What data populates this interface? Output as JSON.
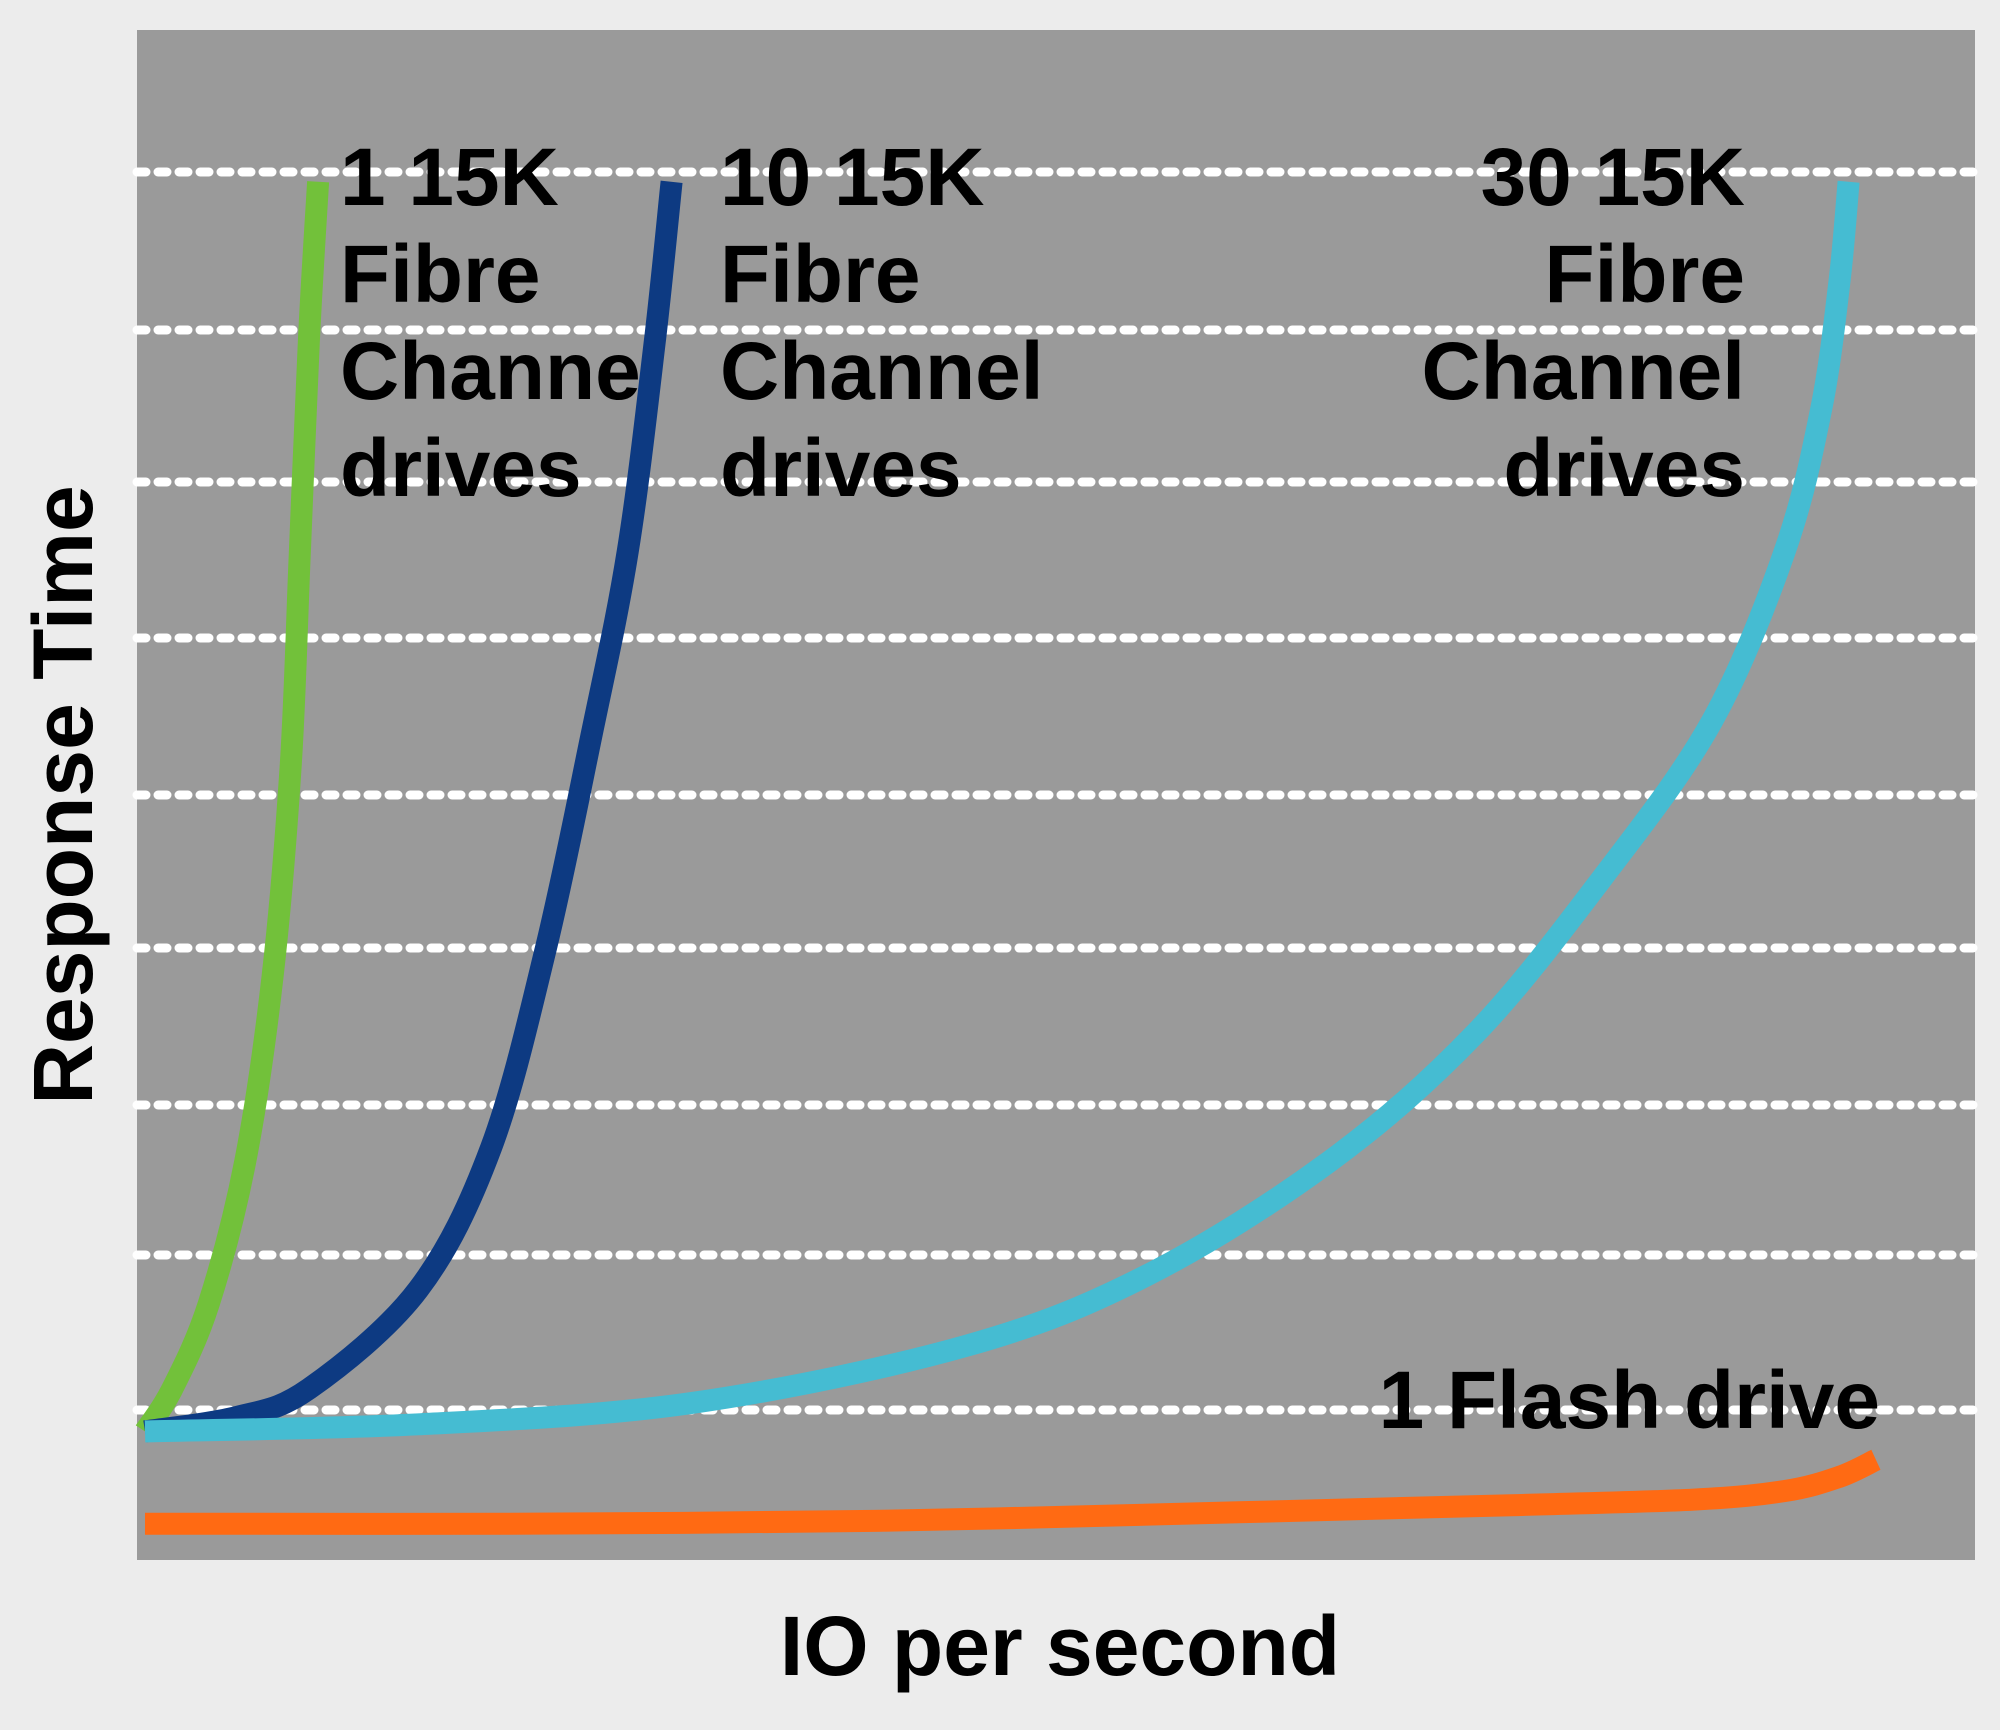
{
  "chart_data": {
    "type": "line",
    "title": "",
    "xlabel": "IO per second",
    "ylabel": "Response Time",
    "xlim": [
      0,
      100
    ],
    "ylim": [
      0,
      100
    ],
    "grid": true,
    "grid_style": "dotted white horizontal lines",
    "plot_background": "#9a9a9a",
    "page_background": "#ececec",
    "series": [
      {
        "name": "1 15K Fibre Channe drives",
        "label_lines": [
          "1 15K",
          "Fibre",
          "Channe",
          "drives"
        ],
        "label_align": "left",
        "color": "#72c13a",
        "x": [
          0,
          1.5,
          3.5,
          5.5,
          7,
          8,
          8.5,
          9.0,
          9.5
        ],
        "y": [
          8,
          11,
          17,
          27,
          40,
          55,
          70,
          85,
          96
        ]
      },
      {
        "name": "10 15K Fibre Channel drives",
        "label_lines": [
          "10 15K",
          "Fibre",
          "Channel",
          "drives"
        ],
        "label_align": "left",
        "color": "#0d3a82",
        "x": [
          0,
          5,
          9,
          15,
          19,
          22,
          24.5,
          26.5,
          28,
          28.9
        ],
        "y": [
          8,
          9,
          11,
          18,
          28,
          42,
          57,
          70,
          85,
          96
        ]
      },
      {
        "name": "30 15K Fibre Channel drives",
        "label_lines": [
          "30 15K",
          "Fibre",
          "Channel",
          "drives"
        ],
        "label_align": "right",
        "color": "#45bcd2",
        "x": [
          0,
          15,
          30,
          45,
          55,
          65,
          73,
          80,
          86,
          90,
          92,
          93,
          93.5
        ],
        "y": [
          8,
          8.5,
          10,
          14,
          19,
          27,
          36,
          47,
          58,
          70,
          80,
          89,
          96
        ]
      },
      {
        "name": "1 Flash drive",
        "label_lines": [
          "1 Flash drive"
        ],
        "label_align": "right",
        "color": "#ff6a13",
        "x": [
          0,
          20,
          40,
          60,
          75,
          85,
          90,
          93,
          95
        ],
        "y": [
          1.5,
          1.5,
          1.7,
          2.3,
          2.8,
          3.2,
          3.8,
          4.8,
          6
        ]
      }
    ]
  }
}
